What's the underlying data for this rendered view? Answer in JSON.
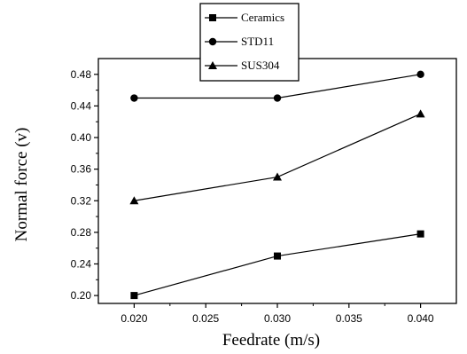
{
  "chart_data": {
    "type": "line",
    "xlabel": "Feedrate (m/s)",
    "ylabel": "Normal force (v)",
    "x": [
      0.02,
      0.03,
      0.04
    ],
    "xlim": [
      0.0175,
      0.0425
    ],
    "ylim": [
      0.19,
      0.5
    ],
    "xticks": [
      "0.020",
      "0.025",
      "0.030",
      "0.035",
      "0.040"
    ],
    "yticks": [
      "0.20",
      "0.24",
      "0.28",
      "0.32",
      "0.36",
      "0.40",
      "0.44",
      "0.48"
    ],
    "grid": false,
    "legend_position": "top",
    "series": [
      {
        "name": "Ceramics",
        "marker": "square",
        "values": [
          0.2,
          0.25,
          0.278
        ]
      },
      {
        "name": "STD11",
        "marker": "circle",
        "values": [
          0.45,
          0.45,
          0.48
        ]
      },
      {
        "name": "SUS304",
        "marker": "triangle",
        "values": [
          0.32,
          0.35,
          0.43
        ]
      }
    ],
    "colors": {
      "line": "#000000",
      "background": "#ffffff"
    }
  }
}
